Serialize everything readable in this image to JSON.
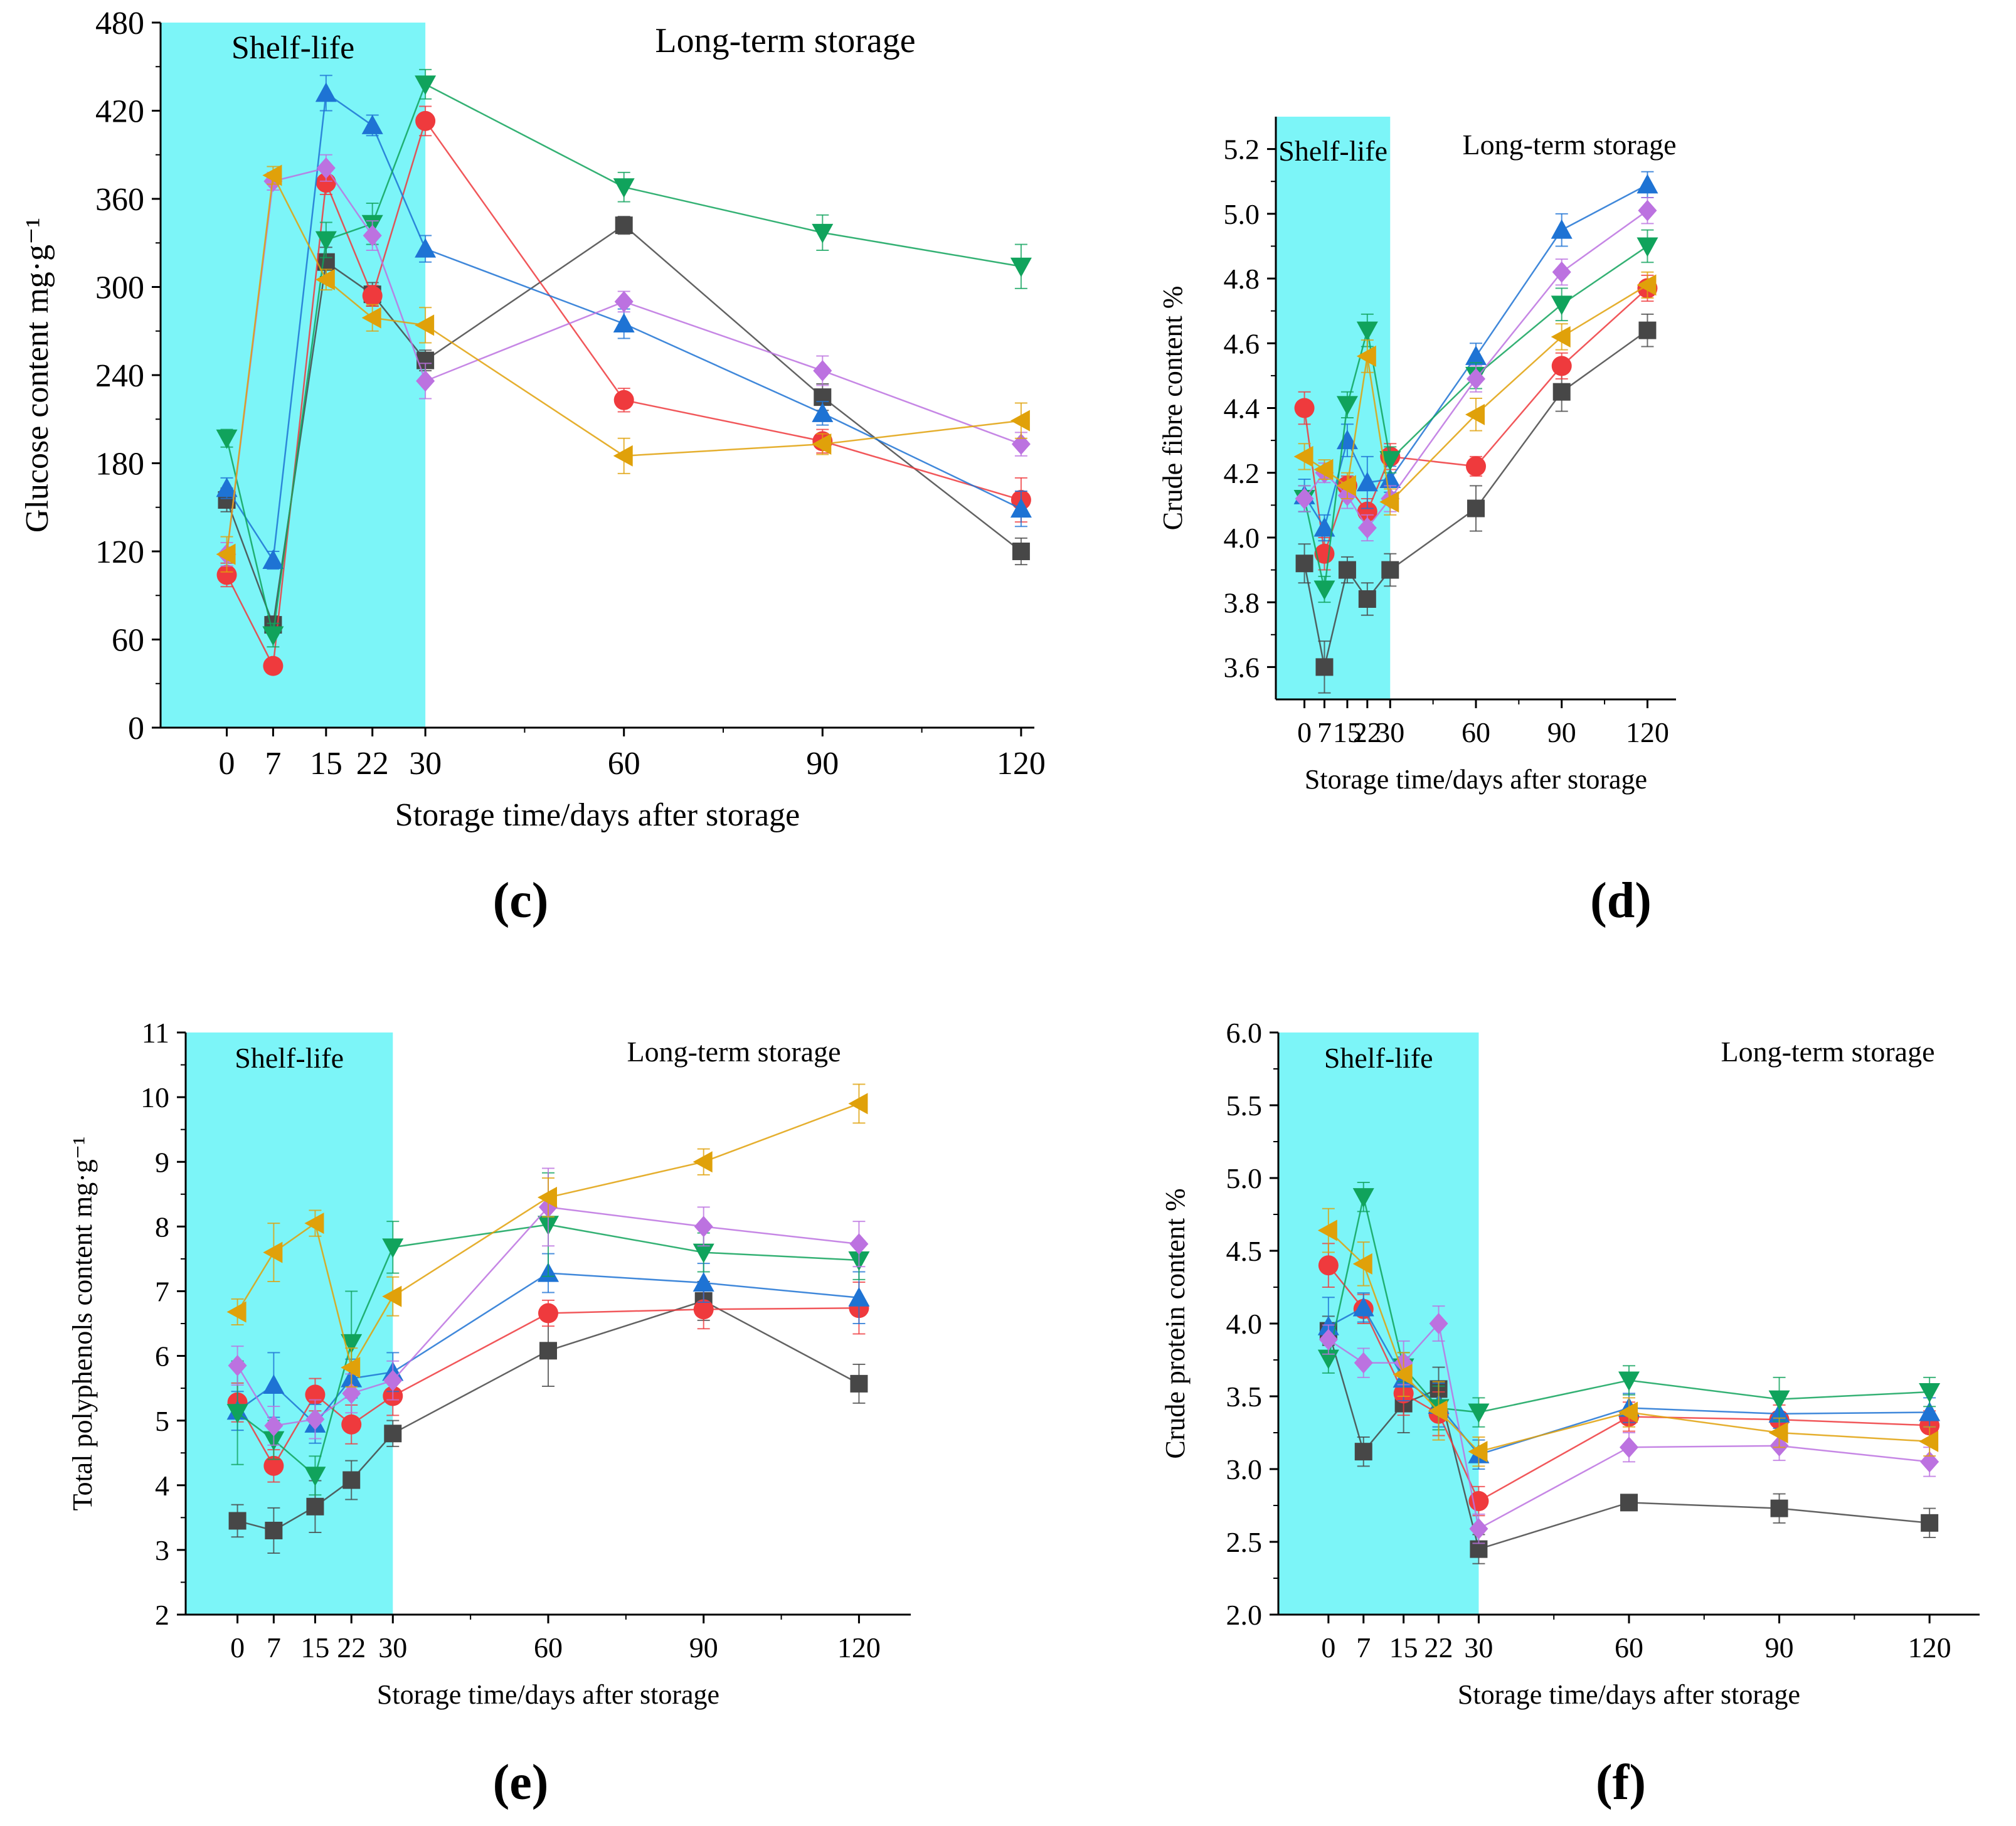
{
  "colors": {
    "shelf_fill": "#7cf5f8",
    "square": "#474747",
    "circle": "#ef3a3d",
    "up": "#1e73d4",
    "down": "#10a35c",
    "diamond": "#bc72e0",
    "left": "#e0a10a"
  },
  "chart_data": [
    {
      "type": "line",
      "panel_label": "(c)",
      "title": "",
      "xlabel": "Storage time/days after storage",
      "ylabel": "Glucose content  mg·g⁻¹",
      "shelf_label": "Shelf-life",
      "storage_label": "Long-term storage",
      "shelf_range": [
        -10,
        30
      ],
      "xlim": [
        -10,
        122
      ],
      "ylim": [
        0,
        480
      ],
      "xticks": [
        0,
        7,
        15,
        22,
        30,
        60,
        90,
        120
      ],
      "yticks": [
        0,
        60,
        120,
        180,
        240,
        300,
        360,
        420,
        480
      ],
      "y_decimals": 0,
      "x": [
        0,
        7,
        15,
        22,
        30,
        60,
        90,
        120
      ],
      "series": [
        {
          "marker": "square",
          "values": [
            155,
            70,
            317,
            295,
            250,
            342,
            225,
            120
          ],
          "errors": [
            8,
            6,
            10,
            8,
            7,
            6,
            9,
            9
          ]
        },
        {
          "marker": "circle",
          "values": [
            104,
            42,
            371,
            294,
            413,
            223,
            195,
            155
          ],
          "errors": [
            8,
            4,
            8,
            7,
            10,
            8,
            8,
            15
          ]
        },
        {
          "marker": "up",
          "values": [
            163,
            114,
            432,
            410,
            326,
            275,
            214,
            149
          ],
          "errors": [
            7,
            6,
            12,
            7,
            9,
            10,
            8,
            12
          ]
        },
        {
          "marker": "down",
          "values": [
            197,
            63,
            332,
            343,
            438,
            368,
            337,
            314
          ],
          "errors": [
            6,
            8,
            12,
            14,
            10,
            10,
            12,
            15
          ]
        },
        {
          "marker": "diamond",
          "values": [
            118,
            372,
            381,
            335,
            236,
            290,
            243,
            193
          ],
          "errors": [
            8,
            6,
            9,
            10,
            12,
            7,
            10,
            8
          ]
        },
        {
          "marker": "left",
          "values": [
            118,
            376,
            305,
            279,
            274,
            185,
            193,
            209
          ],
          "errors": [
            12,
            6,
            7,
            9,
            12,
            12,
            7,
            12
          ]
        }
      ]
    },
    {
      "type": "line",
      "panel_label": "(d)",
      "title": "",
      "xlabel": "Storage time/days after storage",
      "ylabel": "Crude fibre content %",
      "shelf_label": "Shelf-life",
      "storage_label": "Long-term storage",
      "shelf_range": [
        -10,
        30
      ],
      "xlim": [
        -10,
        130
      ],
      "ylim": [
        3.5,
        5.3
      ],
      "xticks": [
        0,
        7,
        15,
        22,
        30,
        60,
        90,
        120
      ],
      "yticks": [
        3.6,
        3.8,
        4.0,
        4.2,
        4.4,
        4.6,
        4.8,
        5.0,
        5.2
      ],
      "y_decimals": 1,
      "x": [
        0,
        7,
        15,
        22,
        30,
        60,
        90,
        120
      ],
      "series": [
        {
          "marker": "square",
          "values": [
            3.92,
            3.6,
            3.9,
            3.81,
            3.9,
            4.09,
            4.45,
            4.64
          ],
          "errors": [
            0.06,
            0.08,
            0.04,
            0.05,
            0.05,
            0.07,
            0.06,
            0.05
          ]
        },
        {
          "marker": "circle",
          "values": [
            4.4,
            3.95,
            4.16,
            4.08,
            4.25,
            4.22,
            4.53,
            4.77
          ],
          "errors": [
            0.05,
            0.05,
            0.03,
            0.04,
            0.04,
            0.03,
            0.04,
            0.04
          ]
        },
        {
          "marker": "up",
          "values": [
            4.13,
            4.03,
            4.3,
            4.17,
            4.18,
            4.56,
            4.95,
            5.09
          ],
          "errors": [
            0.05,
            0.04,
            0.05,
            0.08,
            0.04,
            0.04,
            0.05,
            0.04
          ]
        },
        {
          "marker": "down",
          "values": [
            4.12,
            3.84,
            4.41,
            4.64,
            4.24,
            4.5,
            4.72,
            4.9
          ],
          "errors": [
            0.04,
            0.04,
            0.04,
            0.05,
            0.04,
            0.04,
            0.05,
            0.05
          ]
        },
        {
          "marker": "diamond",
          "values": [
            4.12,
            4.2,
            4.13,
            4.03,
            4.12,
            4.49,
            4.82,
            5.01
          ],
          "errors": [
            0.04,
            0.03,
            0.04,
            0.04,
            0.04,
            0.04,
            0.04,
            0.04
          ]
        },
        {
          "marker": "left",
          "values": [
            4.25,
            4.21,
            4.16,
            4.56,
            4.11,
            4.38,
            4.62,
            4.78
          ],
          "errors": [
            0.04,
            0.03,
            0.04,
            0.05,
            0.04,
            0.05,
            0.04,
            0.04
          ]
        }
      ]
    },
    {
      "type": "line",
      "panel_label": "(e)",
      "title": "",
      "xlabel": "Storage time/days after storage",
      "ylabel": "Total polyphenols content  mg·g⁻¹",
      "shelf_label": "Shelf-life",
      "storage_label": "Long-term storage",
      "shelf_range": [
        -10,
        30
      ],
      "xlim": [
        -10,
        130
      ],
      "ylim": [
        2,
        11
      ],
      "xticks": [
        0,
        7,
        15,
        22,
        30,
        60,
        90,
        120
      ],
      "yticks": [
        2,
        3,
        4,
        5,
        6,
        7,
        8,
        9,
        10,
        11
      ],
      "y_decimals": 0,
      "x": [
        0,
        7,
        15,
        22,
        30,
        60,
        90,
        120
      ],
      "series": [
        {
          "marker": "square",
          "values": [
            3.45,
            3.3,
            3.67,
            4.08,
            4.8,
            6.08,
            6.85,
            5.57
          ],
          "errors": [
            0.25,
            0.35,
            0.4,
            0.3,
            0.2,
            0.55,
            0.3,
            0.3
          ]
        },
        {
          "marker": "circle",
          "values": [
            5.28,
            4.3,
            5.4,
            4.94,
            5.38,
            6.66,
            6.72,
            6.74
          ],
          "errors": [
            0.3,
            0.25,
            0.25,
            0.3,
            0.3,
            0.2,
            0.3,
            0.4
          ]
        },
        {
          "marker": "up",
          "values": [
            5.15,
            5.55,
            4.95,
            5.65,
            5.75,
            7.28,
            7.13,
            6.9
          ],
          "errors": [
            0.3,
            0.5,
            0.3,
            0.3,
            0.3,
            0.3,
            0.3,
            0.4
          ]
        },
        {
          "marker": "down",
          "values": [
            5.12,
            4.7,
            4.15,
            6.2,
            7.68,
            8.03,
            7.6,
            7.48
          ],
          "errors": [
            0.8,
            0.3,
            0.3,
            0.8,
            0.4,
            0.8,
            0.3,
            0.3
          ]
        },
        {
          "marker": "diamond",
          "values": [
            5.85,
            4.92,
            5.02,
            5.42,
            5.62,
            8.3,
            8.0,
            7.73
          ],
          "errors": [
            0.3,
            0.3,
            0.3,
            0.3,
            0.3,
            0.6,
            0.3,
            0.35
          ]
        },
        {
          "marker": "left",
          "values": [
            6.68,
            7.6,
            8.05,
            5.82,
            6.92,
            8.45,
            9.0,
            9.9
          ],
          "errors": [
            0.2,
            0.45,
            0.2,
            0.3,
            0.3,
            0.3,
            0.2,
            0.3
          ]
        }
      ]
    },
    {
      "type": "line",
      "panel_label": "(f)",
      "title": "",
      "xlabel": "Storage time/days after storage",
      "ylabel": "Crude protein content %",
      "shelf_label": "Shelf-life",
      "storage_label": "Long-term storage",
      "shelf_range": [
        -10,
        30
      ],
      "xlim": [
        -10,
        130
      ],
      "ylim": [
        2.0,
        6.0
      ],
      "xticks": [
        0,
        7,
        15,
        22,
        30,
        60,
        90,
        120
      ],
      "yticks": [
        2.0,
        2.5,
        3.0,
        3.5,
        4.0,
        4.5,
        5.0,
        5.5,
        6.0
      ],
      "y_decimals": 1,
      "x": [
        0,
        7,
        15,
        22,
        30,
        60,
        90,
        120
      ],
      "series": [
        {
          "marker": "square",
          "values": [
            3.95,
            3.12,
            3.45,
            3.55,
            2.45,
            2.77,
            2.73,
            2.63
          ],
          "errors": [
            0.1,
            0.1,
            0.2,
            0.15,
            0.1,
            0.05,
            0.1,
            0.1
          ]
        },
        {
          "marker": "circle",
          "values": [
            4.4,
            4.1,
            3.52,
            3.38,
            2.78,
            3.36,
            3.34,
            3.3
          ],
          "errors": [
            0.15,
            0.1,
            0.15,
            0.15,
            0.1,
            0.1,
            0.1,
            0.1
          ]
        },
        {
          "marker": "up",
          "values": [
            3.98,
            4.11,
            3.62,
            3.44,
            3.1,
            3.42,
            3.38,
            3.39
          ],
          "errors": [
            0.2,
            0.1,
            0.15,
            0.15,
            0.1,
            0.1,
            0.1,
            0.1
          ]
        },
        {
          "marker": "down",
          "values": [
            3.76,
            4.87,
            3.7,
            3.42,
            3.39,
            3.61,
            3.48,
            3.53
          ],
          "errors": [
            0.1,
            0.1,
            0.1,
            0.15,
            0.1,
            0.1,
            0.15,
            0.1
          ]
        },
        {
          "marker": "diamond",
          "values": [
            3.89,
            3.73,
            3.73,
            4.0,
            2.59,
            3.15,
            3.16,
            3.05
          ],
          "errors": [
            0.1,
            0.1,
            0.15,
            0.12,
            0.1,
            0.1,
            0.1,
            0.1
          ]
        },
        {
          "marker": "left",
          "values": [
            4.64,
            4.41,
            3.65,
            3.4,
            3.12,
            3.39,
            3.25,
            3.19
          ],
          "errors": [
            0.15,
            0.15,
            0.15,
            0.2,
            0.1,
            0.1,
            0.1,
            0.1
          ]
        }
      ]
    }
  ]
}
